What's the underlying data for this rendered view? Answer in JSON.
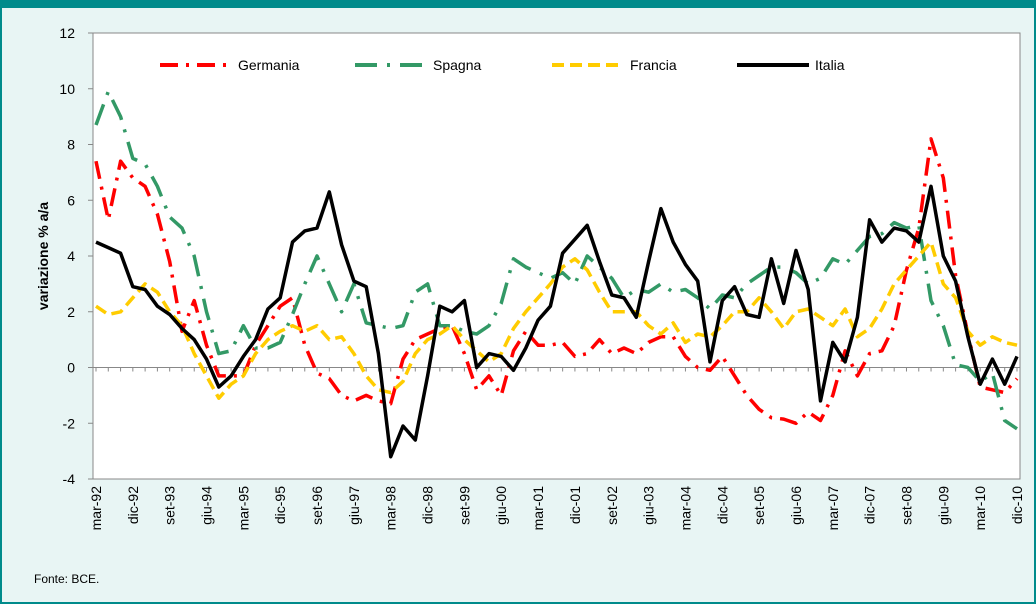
{
  "chart_data": {
    "type": "line",
    "y_label": "variazione % a/a",
    "source": "Fonte: BCE.",
    "legend": "top",
    "grid": false,
    "ylim": [
      -4,
      12
    ],
    "yticks": [
      -4,
      -2,
      0,
      2,
      4,
      6,
      8,
      10,
      12
    ],
    "categories": [
      "mar-92",
      null,
      null,
      "dic-92",
      null,
      null,
      "set-93",
      null,
      null,
      "giu-94",
      null,
      null,
      "mar-95",
      null,
      null,
      "dic-95",
      null,
      null,
      "set-96",
      null,
      null,
      "giu-97",
      null,
      null,
      "mar-98",
      null,
      null,
      "dic-98",
      null,
      null,
      "set-99",
      null,
      null,
      "giu-00",
      null,
      null,
      "mar-01",
      null,
      null,
      "dic-01",
      null,
      null,
      "set-02",
      null,
      null,
      "giu-03",
      null,
      null,
      "mar-04",
      null,
      null,
      "dic-04",
      null,
      null,
      "set-05",
      null,
      null,
      "giu-06",
      null,
      null,
      "mar-07",
      null,
      null,
      "dic-07",
      null,
      null,
      "set-08",
      null,
      null,
      "giu-09",
      null,
      null,
      "mar-10",
      null,
      null,
      "dic-10"
    ],
    "series": [
      {
        "name": "Germania",
        "color": "#ff0000",
        "style": "dashdot",
        "values": [
          7.4,
          5.3,
          7.4,
          6.8,
          6.5,
          5.5,
          3.8,
          1.3,
          2.4,
          0.8,
          -0.3,
          -0.3,
          -0.3,
          0.8,
          1.5,
          2.2,
          2.5,
          0.8,
          -0.2,
          -0.4,
          -1.0,
          -1.2,
          -1.0,
          -1.2,
          -1.3,
          0.3,
          1.0,
          1.2,
          1.4,
          1.5,
          0.5,
          -0.8,
          -0.3,
          -1.0,
          0.6,
          1.3,
          0.8,
          0.8,
          0.9,
          0.4,
          0.5,
          1.0,
          0.5,
          0.7,
          0.5,
          0.9,
          1.1,
          1.1,
          0.4,
          0.0,
          -0.1,
          0.4,
          -0.3,
          -1.0,
          -1.5,
          -1.8,
          -1.85,
          -2.0,
          -1.6,
          -1.9,
          -1.0,
          0.6,
          -0.3,
          0.5,
          0.6,
          1.5,
          3.5,
          5.0,
          8.2,
          6.8,
          3.3,
          1.2,
          -0.7,
          -0.8,
          -0.9,
          -0.4
        ]
      },
      {
        "name": "Spagna",
        "color": "#339966",
        "style": "longdashdot",
        "values": [
          8.7,
          9.9,
          9.0,
          7.5,
          7.3,
          6.5,
          5.4,
          5.0,
          4.0,
          2.0,
          0.5,
          0.6,
          1.5,
          0.7,
          0.7,
          0.9,
          1.9,
          3.0,
          4.0,
          3.0,
          2.0,
          3.0,
          1.6,
          1.5,
          1.4,
          1.5,
          2.7,
          3.0,
          1.5,
          1.5,
          1.3,
          1.2,
          1.5,
          2.3,
          3.9,
          3.6,
          3.4,
          3.2,
          3.4,
          3.0,
          4.0,
          3.6,
          3.2,
          2.5,
          2.8,
          2.7,
          3.0,
          2.7,
          2.8,
          2.5,
          2.1,
          2.6,
          2.5,
          3.0,
          3.3,
          3.6,
          3.6,
          3.4,
          3.0,
          3.2,
          3.9,
          3.7,
          4.2,
          4.7,
          4.8,
          5.2,
          5.0,
          5.1,
          2.4,
          1.5,
          0.1,
          0.0,
          -0.5,
          -0.2,
          -1.9,
          -2.2
        ]
      },
      {
        "name": "Francia",
        "color": "#ffcc00",
        "style": "dashed",
        "values": [
          2.2,
          1.9,
          2.0,
          2.5,
          3.0,
          2.7,
          2.0,
          1.5,
          0.5,
          -0.3,
          -1.1,
          -0.6,
          -0.3,
          0.5,
          1.0,
          1.3,
          1.5,
          1.3,
          1.5,
          1.0,
          1.1,
          0.5,
          -0.3,
          -0.8,
          -0.9,
          -0.5,
          0.5,
          1.0,
          1.2,
          1.5,
          1.0,
          0.6,
          0.2,
          0.5,
          1.4,
          2.0,
          2.5,
          3.0,
          3.6,
          3.9,
          3.5,
          2.7,
          2.0,
          2.0,
          2.0,
          1.5,
          1.2,
          1.6,
          0.9,
          1.2,
          1.1,
          1.5,
          2.0,
          2.0,
          2.5,
          2.0,
          1.4,
          2.0,
          2.1,
          1.8,
          1.5,
          2.1,
          1.1,
          1.4,
          2.1,
          3.0,
          3.5,
          4.0,
          4.5,
          3.0,
          2.5,
          1.3,
          0.8,
          1.1,
          0.9,
          0.8
        ]
      },
      {
        "name": "Italia",
        "color": "#000000",
        "style": "solid",
        "values": [
          4.5,
          4.3,
          4.1,
          2.9,
          2.8,
          2.2,
          1.9,
          1.4,
          1.0,
          0.3,
          -0.7,
          -0.3,
          0.4,
          1.0,
          2.1,
          2.5,
          4.5,
          4.9,
          5.0,
          6.3,
          4.4,
          3.1,
          2.9,
          0.5,
          -3.2,
          -2.1,
          -2.6,
          -0.3,
          2.2,
          2.0,
          2.4,
          0.0,
          0.5,
          0.4,
          -0.1,
          0.7,
          1.7,
          2.2,
          4.1,
          4.6,
          5.1,
          3.8,
          2.6,
          2.5,
          1.8,
          3.8,
          5.7,
          4.5,
          3.7,
          3.1,
          0.2,
          2.4,
          2.9,
          1.9,
          1.8,
          3.9,
          2.3,
          4.2,
          2.8,
          -1.2,
          0.9,
          0.2,
          1.8,
          5.3,
          4.5,
          5.0,
          4.9,
          4.5,
          6.5,
          4.0,
          3.1,
          1.1,
          -0.6,
          0.3,
          -0.6,
          0.4
        ]
      }
    ]
  }
}
